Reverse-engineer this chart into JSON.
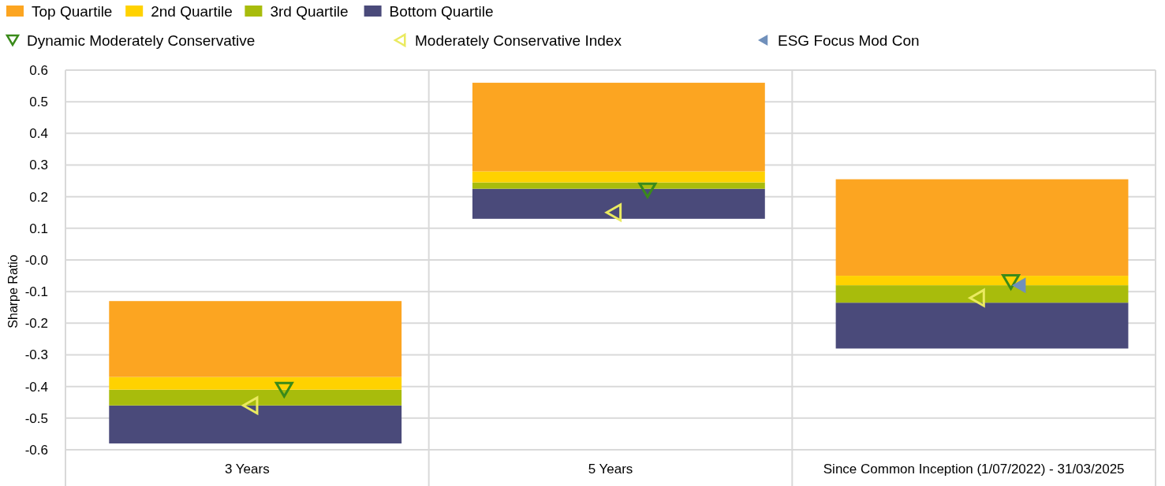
{
  "chart_data": {
    "type": "bar",
    "ylabel": "Sharpe Ratio",
    "categories": [
      "3 Years",
      "5 Years",
      "Since Common Inception (1/07/2022) - 31/03/2025"
    ],
    "series": [
      {
        "name": "Bottom Quartile",
        "color": "#4a4a7a",
        "base": [
          -0.58,
          0.13,
          -0.28
        ],
        "values": [
          0.12,
          0.095,
          0.145
        ]
      },
      {
        "name": "3rd Quartile",
        "color": "#a8bc0c",
        "base": [
          -0.46,
          0.225,
          -0.135
        ],
        "values": [
          0.05,
          0.02,
          0.055
        ]
      },
      {
        "name": "2nd Quartile",
        "color": "#ffd200",
        "base": [
          -0.41,
          0.245,
          -0.08
        ],
        "values": [
          0.04,
          0.035,
          0.03
        ]
      },
      {
        "name": "Top Quartile",
        "color": "#fca521",
        "base": [
          -0.37,
          0.28,
          -0.05
        ],
        "values": [
          0.24,
          0.28,
          0.305
        ]
      },
      {
        "type": "scatter",
        "name": "Dynamic Moderately Conservative",
        "color": "#3a8a1a",
        "marker": "triangle",
        "x": [
          "3 Years",
          "5 Years",
          "Since Common Inception (1/07/2022) - 31/03/2025"
        ],
        "values": [
          -0.41,
          0.22,
          -0.07
        ]
      },
      {
        "type": "scatter",
        "name": "Moderately Conservative Index",
        "color": "#eaea60",
        "marker": "triangle",
        "x": [
          "3 Years",
          "5 Years",
          "Since Common Inception (1/07/2022) - 31/03/2025"
        ],
        "values": [
          -0.46,
          0.15,
          -0.12
        ]
      },
      {
        "type": "scatter",
        "name": "ESG Focus Mod Con",
        "color": "#7090bb",
        "marker": "triangle",
        "x": [
          null,
          null,
          "Since Common Inception (1/07/2022) - 31/03/2025"
        ],
        "values": [
          null,
          null,
          -0.08
        ]
      }
    ],
    "ylim": [
      -0.6,
      0.6
    ],
    "yticks": [
      0.6,
      0.5,
      0.4,
      0.3,
      0.2,
      0.1,
      {
        "value": 0,
        "label": "-0.0"
      },
      -0.1,
      -0.2,
      -0.3,
      -0.4,
      -0.5,
      -0.6
    ],
    "grid": true,
    "legend": "top"
  }
}
